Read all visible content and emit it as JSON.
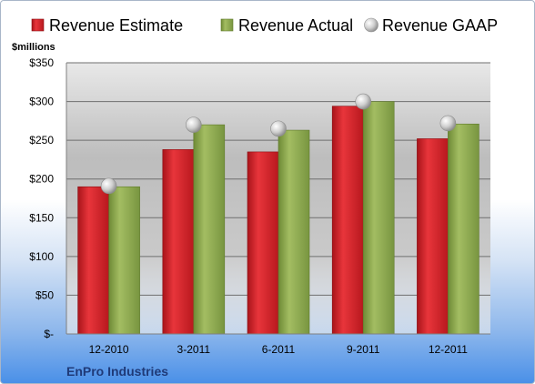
{
  "chart_data": {
    "type": "bar",
    "unit_label": "$millions",
    "company": "EnPro Industries",
    "categories": [
      "12-2010",
      "3-2011",
      "6-2011",
      "9-2011",
      "12-2011"
    ],
    "series": [
      {
        "name": "Revenue Estimate",
        "kind": "bar",
        "color": "#d9232a",
        "values": [
          190,
          238,
          235,
          294,
          252
        ]
      },
      {
        "name": "Revenue Actual",
        "kind": "bar",
        "color": "#8faa4c",
        "values": [
          190,
          270,
          263,
          300,
          271
        ]
      },
      {
        "name": "Revenue GAAP",
        "kind": "marker",
        "color": "#c8c8c8",
        "values": [
          191,
          270,
          265,
          300,
          272
        ]
      }
    ],
    "ylim": [
      0,
      350
    ],
    "yticks": [
      0,
      50,
      100,
      150,
      200,
      250,
      300,
      350
    ],
    "ytick_labels": [
      "$-",
      "$50",
      "$100",
      "$150",
      "$200",
      "$250",
      "$300",
      "$350"
    ],
    "grid": true,
    "legend_position": "top"
  }
}
